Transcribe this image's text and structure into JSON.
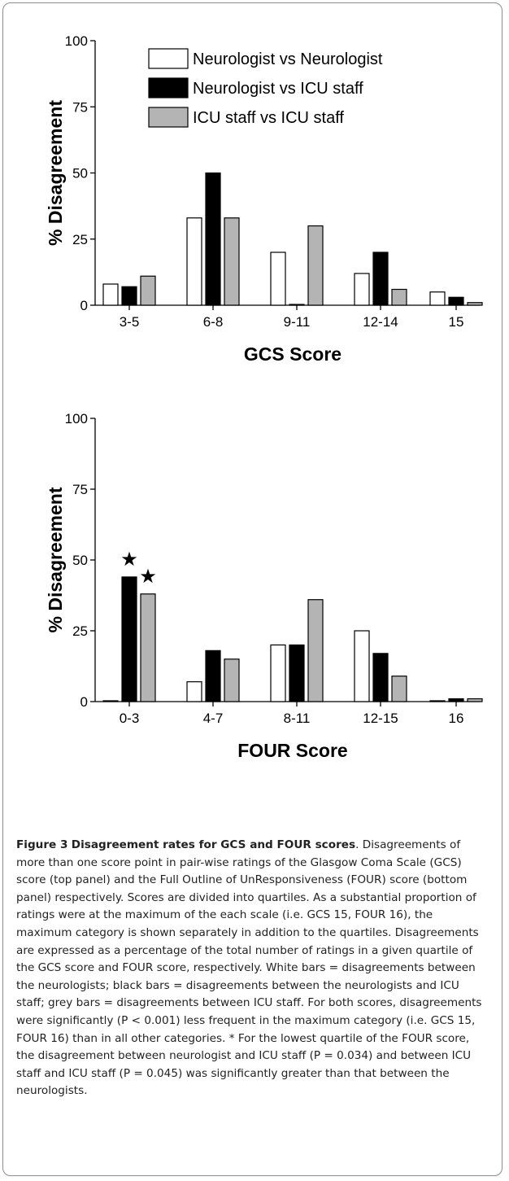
{
  "figure": {
    "caption_label": "Figure 3",
    "caption_title": "Disagreement rates for GCS and FOUR scores",
    "caption_text": "Disagreements of more than one score point in pair-wise ratings of the Glasgow Coma Scale (GCS) score (top panel) and the Full Outline of UnResponsiveness (FOUR) score (bottom panel) respectively. Scores are divided into quartiles. As a substantial proportion of ratings were at the maximum of the each scale (i.e. GCS 15, FOUR 16), the maximum category is shown separately in addition to the quartiles. Disagreements are expressed as a percentage of the total number of ratings in a given quartile of the GCS score and FOUR score, respectively. White bars = disagreements between the neurologists; black bars = disagreements between the neurologists and ICU staff; grey bars = disagreements between ICU staff. For both scores, disagreements were significantly (P < 0.001) less frequent in the maximum category (i.e. GCS 15, FOUR 16) than in all other categories. * For the lowest quartile of the FOUR score, the disagreement between neurologist and ICU staff (P = 0.034) and between ICU staff and ICU staff (P = 0.045) was significantly greater than that between the neurologists."
  },
  "chart_data": [
    {
      "type": "bar",
      "xlabel": "GCS Score",
      "ylabel": "% Disagreement",
      "ylim": [
        0,
        100
      ],
      "yticks": [
        "0",
        "25",
        "50",
        "75",
        "100"
      ],
      "categories": [
        "3-5",
        "6-8",
        "9-11",
        "12-14",
        "15"
      ],
      "series": [
        {
          "name": "Neurologist vs Neurologist",
          "color": "#ffffff",
          "values": [
            8,
            33,
            20,
            12,
            5
          ]
        },
        {
          "name": "Neurologist vs ICU staff",
          "color": "#000000",
          "values": [
            7,
            50,
            0.3,
            20,
            3
          ]
        },
        {
          "name": "ICU staff vs ICU staff",
          "color": "#b4b4b4",
          "values": [
            11,
            33,
            30,
            6,
            1
          ]
        }
      ],
      "legend": "top-right",
      "annotations": []
    },
    {
      "type": "bar",
      "xlabel": "FOUR Score",
      "ylabel": "% Disagreement",
      "ylim": [
        0,
        100
      ],
      "yticks": [
        "0",
        "25",
        "50",
        "75",
        "100"
      ],
      "categories": [
        "0-3",
        "4-7",
        "8-11",
        "12-15",
        "16"
      ],
      "series": [
        {
          "name": "Neurologist vs Neurologist",
          "color": "#ffffff",
          "values": [
            0.3,
            7,
            20,
            25,
            0.3
          ]
        },
        {
          "name": "Neurologist vs ICU staff",
          "color": "#000000",
          "values": [
            44,
            18,
            20,
            17,
            1
          ]
        },
        {
          "name": "ICU staff vs ICU staff",
          "color": "#b4b4b4",
          "values": [
            38,
            15,
            36,
            9,
            1
          ]
        }
      ],
      "legend": "none",
      "annotations": [
        {
          "category": "0-3",
          "series": 1,
          "symbol": "★"
        },
        {
          "category": "0-3",
          "series": 2,
          "symbol": "★"
        }
      ]
    }
  ]
}
